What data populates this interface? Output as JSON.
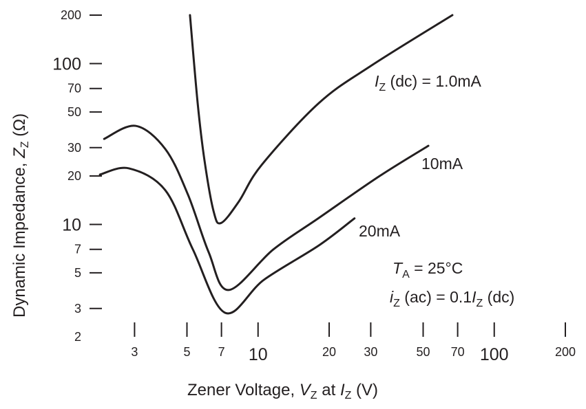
{
  "chart_data": {
    "type": "line",
    "title": "",
    "xscale": "log",
    "yscale": "log",
    "xlim": [
      2,
      200
    ],
    "ylim": [
      2,
      200
    ],
    "xlabel": {
      "main": "Zener Voltage, ",
      "v": "V",
      "vsub": "Z",
      "at": " at ",
      "i": "I",
      "isub": "Z",
      "unit": " (V)"
    },
    "ylabel": {
      "main": "Dynamic Impedance, ",
      "z": "Z",
      "zsub": "Z",
      "unit": " (Ω)"
    },
    "xticks": [
      {
        "value": 3,
        "label": "3",
        "major": false
      },
      {
        "value": 5,
        "label": "5",
        "major": false
      },
      {
        "value": 7,
        "label": "7",
        "major": false
      },
      {
        "value": 10,
        "label": "10",
        "major": true
      },
      {
        "value": 20,
        "label": "20",
        "major": false
      },
      {
        "value": 30,
        "label": "30",
        "major": false
      },
      {
        "value": 50,
        "label": "50",
        "major": false
      },
      {
        "value": 70,
        "label": "70",
        "major": false
      },
      {
        "value": 100,
        "label": "100",
        "major": true
      },
      {
        "value": 200,
        "label": "200",
        "major": false
      }
    ],
    "yticks": [
      {
        "value": 2,
        "label": "2",
        "major": false
      },
      {
        "value": 3,
        "label": "3",
        "major": false
      },
      {
        "value": 5,
        "label": "5",
        "major": false
      },
      {
        "value": 7,
        "label": "7",
        "major": false
      },
      {
        "value": 10,
        "label": "10",
        "major": true
      },
      {
        "value": 20,
        "label": "20",
        "major": false
      },
      {
        "value": 30,
        "label": "30",
        "major": false
      },
      {
        "value": 50,
        "label": "50",
        "major": false
      },
      {
        "value": 70,
        "label": "70",
        "major": false
      },
      {
        "value": 100,
        "label": "100",
        "major": true
      },
      {
        "value": 200,
        "label": "200",
        "major": false
      }
    ],
    "series": [
      {
        "name": "1.0mA",
        "x": [
          5.15,
          5.55,
          5.93,
          6.48,
          6.97,
          8.3,
          10.35,
          18.1,
          30.3,
          66.5
        ],
        "y": [
          200,
          56.8,
          25.1,
          12.1,
          10.2,
          13.9,
          23.4,
          56.8,
          97.5,
          200
        ]
      },
      {
        "name": "10mA",
        "x": [
          2.23,
          3.03,
          4.05,
          5.05,
          6.18,
          7.5,
          11.6,
          18.1,
          32.4,
          52.6
        ],
        "y": [
          34.0,
          41.0,
          29.4,
          15.3,
          6.71,
          3.91,
          6.98,
          10.97,
          19.8,
          30.8
        ]
      },
      {
        "name": "20mA",
        "x": [
          2.14,
          2.84,
          4.05,
          5.3,
          7.26,
          10.6,
          18.1,
          25.6
        ],
        "y": [
          20.4,
          22.3,
          16.3,
          6.98,
          2.82,
          4.53,
          7.4,
          10.9
        ]
      }
    ],
    "annotations": {
      "s1": {
        "i": "I",
        "isub": "Z",
        "rest": " (dc) = 1.0mA"
      },
      "s2": "10mA",
      "s3": "20mA",
      "cond1": {
        "t": "T",
        "tsub": "A",
        "rest": " = 25°C"
      },
      "cond2": {
        "i": "i",
        "isub": "Z",
        "mid": " (ac) = 0.1",
        "I": "I",
        "Isub": "Z",
        "rest": " (dc)"
      }
    }
  }
}
